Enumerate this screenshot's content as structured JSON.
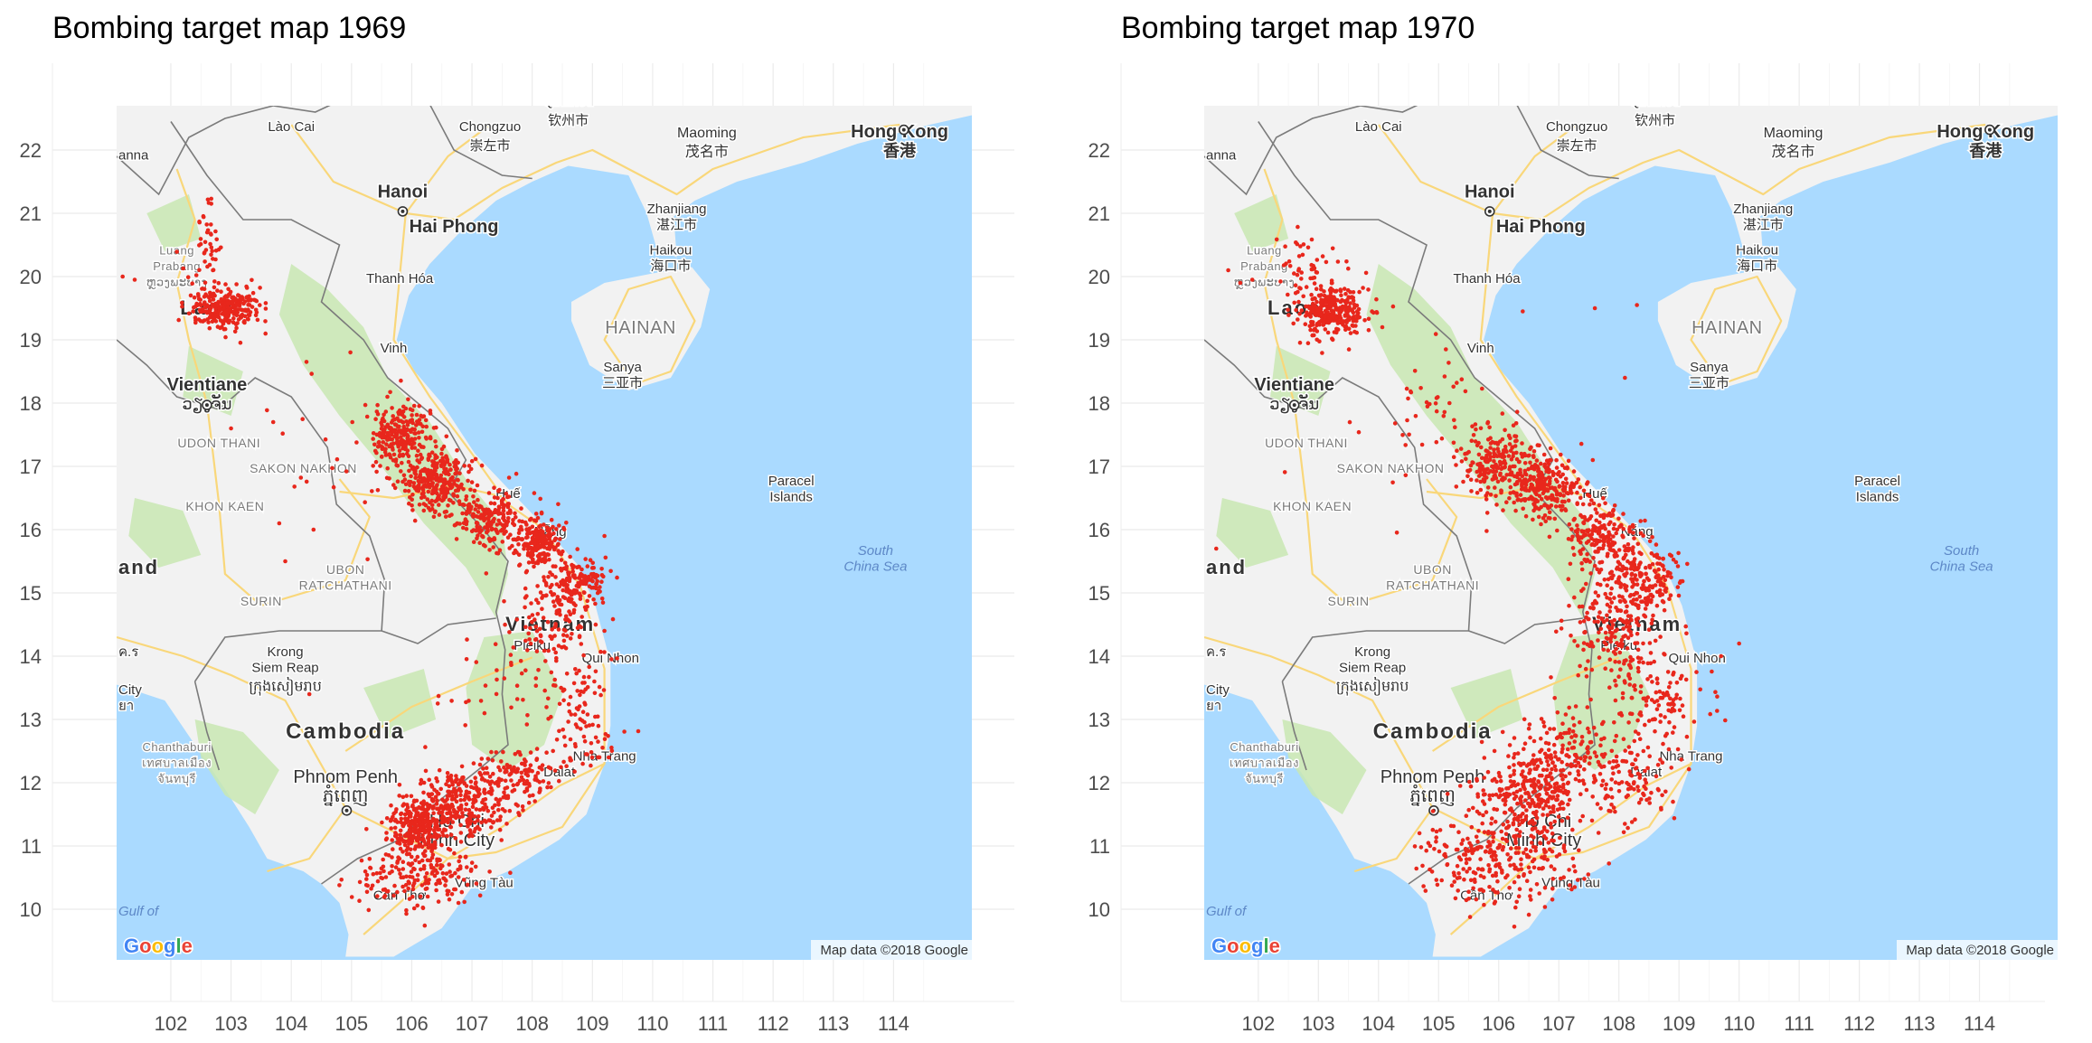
{
  "xlim": [
    101.1,
    115.3
  ],
  "ylim": [
    9.2,
    22.7
  ],
  "map_extent": {
    "lon": [
      101.1,
      115.3
    ],
    "lat": [
      9.2,
      22.7
    ]
  },
  "x_ticks": [
    "102",
    "103",
    "104",
    "105",
    "106",
    "107",
    "108",
    "109",
    "110",
    "111",
    "112",
    "113",
    "114"
  ],
  "y_ticks": [
    "10",
    "11",
    "12",
    "13",
    "14",
    "15",
    "16",
    "17",
    "18",
    "19",
    "20",
    "21",
    "22"
  ],
  "colors": {
    "sea": "#aadaff",
    "land": "#f2f2f2",
    "forest": "#c9e7b3",
    "road": "#f9d77a",
    "border": "#7b7b7b",
    "point": "#e8271c"
  },
  "basemap": {
    "attribution": "Map data ©2018 Google",
    "logo": "Google",
    "places": [
      {
        "text": "Lào Cai",
        "lon": 104.0,
        "lat": 22.3,
        "size": 15,
        "kind": "city"
      },
      {
        "text": "Chongzuo",
        "lon": 107.3,
        "lat": 22.3,
        "size": 15,
        "kind": "city"
      },
      {
        "text": "崇左市",
        "lon": 107.3,
        "lat": 22.0,
        "size": 15,
        "kind": "city"
      },
      {
        "text": "Qinzhou",
        "lon": 108.6,
        "lat": 22.7,
        "size": 15,
        "kind": "city"
      },
      {
        "text": "钦州市",
        "lon": 108.6,
        "lat": 22.4,
        "size": 15,
        "kind": "city"
      },
      {
        "text": "Maoming",
        "lon": 110.9,
        "lat": 22.2,
        "size": 16,
        "kind": "city"
      },
      {
        "text": "茂名市",
        "lon": 110.9,
        "lat": 21.9,
        "size": 16,
        "kind": "city"
      },
      {
        "text": "Hong Kong",
        "lon": 114.1,
        "lat": 22.2,
        "size": 20,
        "kind": "bold"
      },
      {
        "text": "香港",
        "lon": 114.1,
        "lat": 21.9,
        "size": 18,
        "kind": "bold"
      },
      {
        "text": "Hanoi",
        "lon": 105.85,
        "lat": 21.25,
        "size": 20,
        "kind": "bold"
      },
      {
        "text": "Hai Phong",
        "lon": 106.7,
        "lat": 20.7,
        "size": 20,
        "kind": "bold"
      },
      {
        "text": "Zhanjiang",
        "lon": 110.4,
        "lat": 21.0,
        "size": 15,
        "kind": "city"
      },
      {
        "text": "湛江市",
        "lon": 110.4,
        "lat": 20.75,
        "size": 15,
        "kind": "city"
      },
      {
        "text": "Haikou",
        "lon": 110.3,
        "lat": 20.35,
        "size": 15,
        "kind": "city"
      },
      {
        "text": "海口市",
        "lon": 110.3,
        "lat": 20.1,
        "size": 15,
        "kind": "city"
      },
      {
        "text": "Thanh Hóa",
        "lon": 105.8,
        "lat": 19.9,
        "size": 15,
        "kind": "city"
      },
      {
        "text": "HAINAN",
        "lon": 109.8,
        "lat": 19.1,
        "size": 20,
        "kind": "region"
      },
      {
        "text": "Sanya",
        "lon": 109.5,
        "lat": 18.5,
        "size": 15,
        "kind": "city"
      },
      {
        "text": "三亚市",
        "lon": 109.5,
        "lat": 18.25,
        "size": 15,
        "kind": "city"
      },
      {
        "text": "Vinh",
        "lon": 105.7,
        "lat": 18.8,
        "size": 15,
        "kind": "city"
      },
      {
        "text": "Laos",
        "lon": 102.6,
        "lat": 19.4,
        "size": 22,
        "kind": "country"
      },
      {
        "text": "Luang",
        "lon": 102.1,
        "lat": 20.35,
        "size": 13,
        "kind": "small"
      },
      {
        "text": "Prabang",
        "lon": 102.1,
        "lat": 20.1,
        "size": 13,
        "kind": "small"
      },
      {
        "text": "ຫຼວງພະບາງ",
        "lon": 102.1,
        "lat": 19.85,
        "size": 13,
        "kind": "small"
      },
      {
        "text": "Vientiane",
        "lon": 102.6,
        "lat": 18.2,
        "size": 20,
        "kind": "bold"
      },
      {
        "text": "ວຽງຈັນ",
        "lon": 102.6,
        "lat": 17.9,
        "size": 18,
        "kind": "city"
      },
      {
        "text": "UDON THANI",
        "lon": 102.8,
        "lat": 17.3,
        "size": 14,
        "kind": "region"
      },
      {
        "text": "SAKON NAKHON",
        "lon": 104.2,
        "lat": 16.9,
        "size": 14,
        "kind": "region"
      },
      {
        "text": "KHON KAEN",
        "lon": 102.9,
        "lat": 16.3,
        "size": 14,
        "kind": "region"
      },
      {
        "text": "Huế",
        "lon": 107.6,
        "lat": 16.5,
        "size": 15,
        "kind": "city"
      },
      {
        "text": "Nẵng",
        "lon": 108.3,
        "lat": 15.9,
        "size": 15,
        "kind": "city"
      },
      {
        "text": "Paracel",
        "lon": 112.3,
        "lat": 16.7,
        "size": 15,
        "kind": "city"
      },
      {
        "text": "Islands",
        "lon": 112.3,
        "lat": 16.45,
        "size": 15,
        "kind": "city"
      },
      {
        "text": "South",
        "lon": 113.7,
        "lat": 15.6,
        "size": 15,
        "kind": "water"
      },
      {
        "text": "China Sea",
        "lon": 113.7,
        "lat": 15.35,
        "size": 15,
        "kind": "water"
      },
      {
        "text": "and",
        "lon": 101.75,
        "lat": 15.3,
        "size": 22,
        "kind": "country"
      },
      {
        "text": "UBON",
        "lon": 104.9,
        "lat": 15.3,
        "size": 14,
        "kind": "region"
      },
      {
        "text": "RATCHATHANI",
        "lon": 104.9,
        "lat": 15.05,
        "size": 14,
        "kind": "region"
      },
      {
        "text": "SURIN",
        "lon": 103.5,
        "lat": 14.8,
        "size": 14,
        "kind": "region"
      },
      {
        "text": "Vietnam",
        "lon": 108.3,
        "lat": 14.4,
        "size": 22,
        "kind": "country"
      },
      {
        "text": "Pleiku",
        "lon": 108.0,
        "lat": 14.1,
        "size": 15,
        "kind": "city"
      },
      {
        "text": "Qui Nhon",
        "lon": 109.3,
        "lat": 13.9,
        "size": 15,
        "kind": "city"
      },
      {
        "text": "Krong",
        "lon": 103.9,
        "lat": 14.0,
        "size": 15,
        "kind": "city"
      },
      {
        "text": "Siem Reap",
        "lon": 103.9,
        "lat": 13.75,
        "size": 15,
        "kind": "city"
      },
      {
        "text": "ក្រុងសៀមរាប",
        "lon": 103.9,
        "lat": 13.45,
        "size": 16,
        "kind": "city"
      },
      {
        "text": "ค.ร",
        "lon": 101.3,
        "lat": 14.0,
        "size": 15,
        "kind": "city"
      },
      {
        "text": "City",
        "lon": 101.3,
        "lat": 13.4,
        "size": 15,
        "kind": "city"
      },
      {
        "text": "ยา",
        "lon": 101.3,
        "lat": 13.15,
        "size": 15,
        "kind": "city"
      },
      {
        "text": "Cambodia",
        "lon": 104.9,
        "lat": 12.7,
        "size": 24,
        "kind": "country"
      },
      {
        "text": "Nha Trang",
        "lon": 109.2,
        "lat": 12.35,
        "size": 15,
        "kind": "city"
      },
      {
        "text": "Dalat",
        "lon": 108.45,
        "lat": 12.1,
        "size": 15,
        "kind": "city"
      },
      {
        "text": "Phnom Penh",
        "lon": 104.9,
        "lat": 12.0,
        "size": 20,
        "kind": "city"
      },
      {
        "text": "ភ្នំពេញ",
        "lon": 104.9,
        "lat": 11.7,
        "size": 20,
        "kind": "city"
      },
      {
        "text": "Chanthaburi",
        "lon": 102.1,
        "lat": 12.5,
        "size": 13,
        "kind": "small"
      },
      {
        "text": "เทศบาลเมือง",
        "lon": 102.1,
        "lat": 12.25,
        "size": 13,
        "kind": "small"
      },
      {
        "text": "จันทบุรี",
        "lon": 102.1,
        "lat": 12.0,
        "size": 13,
        "kind": "small"
      },
      {
        "text": "Ho Chi",
        "lon": 106.75,
        "lat": 11.3,
        "size": 20,
        "kind": "city"
      },
      {
        "text": "Minh City",
        "lon": 106.75,
        "lat": 11.0,
        "size": 20,
        "kind": "city"
      },
      {
        "text": "Vũng Tàu",
        "lon": 107.2,
        "lat": 10.35,
        "size": 15,
        "kind": "city"
      },
      {
        "text": "Cần Thơ",
        "lon": 105.8,
        "lat": 10.15,
        "size": 15,
        "kind": "city"
      },
      {
        "text": "Gulf of",
        "lon": 101.45,
        "lat": 9.9,
        "size": 15,
        "kind": "water"
      },
      {
        "text": "anna",
        "lon": 101.3,
        "lat": 21.85,
        "size": 15,
        "kind": "city"
      }
    ],
    "capitals": [
      {
        "lon": 105.85,
        "lat": 21.03
      },
      {
        "lon": 102.6,
        "lat": 17.97
      },
      {
        "lon": 104.92,
        "lat": 11.56
      },
      {
        "lon": 114.17,
        "lat": 22.32
      }
    ]
  },
  "panels": [
    {
      "title": "Bombing target map 1969",
      "chart_data": {
        "type": "scatter",
        "title": "Bombing target map 1969",
        "xlim": [
          101.1,
          115.3
        ],
        "ylim": [
          9.2,
          22.7
        ],
        "clusters": [
          {
            "lon": 102.9,
            "lat": 19.5,
            "sd_lon": 0.28,
            "sd_lat": 0.16,
            "n": 260
          },
          {
            "lon": 102.6,
            "lat": 20.5,
            "sd_lon": 0.15,
            "sd_lat": 0.4,
            "n": 45
          },
          {
            "lon": 105.8,
            "lat": 17.5,
            "sd_lon": 0.25,
            "sd_lat": 0.28,
            "n": 230
          },
          {
            "lon": 106.4,
            "lat": 16.8,
            "sd_lon": 0.3,
            "sd_lat": 0.25,
            "n": 290
          },
          {
            "lon": 107.3,
            "lat": 16.2,
            "sd_lon": 0.3,
            "sd_lat": 0.25,
            "n": 200
          },
          {
            "lon": 108.1,
            "lat": 15.8,
            "sd_lon": 0.2,
            "sd_lat": 0.2,
            "n": 200
          },
          {
            "lon": 108.7,
            "lat": 15.2,
            "sd_lon": 0.25,
            "sd_lat": 0.2,
            "n": 170
          },
          {
            "lon": 108.3,
            "lat": 14.5,
            "sd_lon": 0.35,
            "sd_lat": 0.3,
            "n": 110
          },
          {
            "lon": 108.7,
            "lat": 13.4,
            "sd_lon": 0.35,
            "sd_lat": 0.35,
            "n": 60
          },
          {
            "lon": 106.1,
            "lat": 11.3,
            "sd_lon": 0.25,
            "sd_lat": 0.22,
            "n": 300
          },
          {
            "lon": 106.9,
            "lat": 11.7,
            "sd_lon": 0.35,
            "sd_lat": 0.25,
            "n": 240
          },
          {
            "lon": 107.8,
            "lat": 12.1,
            "sd_lon": 0.3,
            "sd_lat": 0.25,
            "n": 110
          },
          {
            "lon": 106.3,
            "lat": 10.5,
            "sd_lon": 0.4,
            "sd_lat": 0.25,
            "n": 140
          },
          {
            "lon": 105.4,
            "lat": 10.5,
            "sd_lon": 0.3,
            "sd_lat": 0.25,
            "n": 40
          },
          {
            "lon": 108.8,
            "lat": 12.6,
            "sd_lon": 0.3,
            "sd_lat": 0.3,
            "n": 50
          },
          {
            "lon": 104.5,
            "lat": 17.0,
            "sd_lon": 0.6,
            "sd_lat": 0.8,
            "n": 20
          },
          {
            "lon": 107.3,
            "lat": 13.5,
            "sd_lon": 0.5,
            "sd_lat": 0.6,
            "n": 25
          }
        ],
        "points": [
          {
            "x": 101.2,
            "y": 20.0
          },
          {
            "x": 101.4,
            "y": 19.95
          },
          {
            "x": 101.05,
            "y": 14.0
          },
          {
            "x": 103.8,
            "y": 16.1
          },
          {
            "x": 103.9,
            "y": 15.5
          },
          {
            "x": 109.2,
            "y": 15.9
          },
          {
            "x": 103.0,
            "y": 17.6
          },
          {
            "x": 103.7,
            "y": 17.7
          },
          {
            "x": 104.3,
            "y": 13.4
          }
        ]
      }
    },
    {
      "title": "Bombing target map 1970",
      "chart_data": {
        "type": "scatter",
        "title": "Bombing target map 1970",
        "xlim": [
          101.1,
          115.3
        ],
        "ylim": [
          9.2,
          22.7
        ],
        "clusters": [
          {
            "lon": 103.2,
            "lat": 19.45,
            "sd_lon": 0.3,
            "sd_lat": 0.2,
            "n": 300
          },
          {
            "lon": 102.8,
            "lat": 20.2,
            "sd_lon": 0.25,
            "sd_lat": 0.25,
            "n": 45
          },
          {
            "lon": 106.0,
            "lat": 17.0,
            "sd_lon": 0.3,
            "sd_lat": 0.3,
            "n": 240
          },
          {
            "lon": 106.8,
            "lat": 16.7,
            "sd_lon": 0.3,
            "sd_lat": 0.28,
            "n": 230
          },
          {
            "lon": 107.7,
            "lat": 15.9,
            "sd_lon": 0.3,
            "sd_lat": 0.25,
            "n": 200
          },
          {
            "lon": 108.4,
            "lat": 15.2,
            "sd_lon": 0.3,
            "sd_lat": 0.25,
            "n": 190
          },
          {
            "lon": 107.9,
            "lat": 14.4,
            "sd_lon": 0.4,
            "sd_lat": 0.35,
            "n": 160
          },
          {
            "lon": 108.6,
            "lat": 13.3,
            "sd_lon": 0.4,
            "sd_lat": 0.45,
            "n": 130
          },
          {
            "lon": 106.5,
            "lat": 11.8,
            "sd_lon": 0.45,
            "sd_lat": 0.35,
            "n": 280
          },
          {
            "lon": 107.1,
            "lat": 12.5,
            "sd_lon": 0.4,
            "sd_lat": 0.4,
            "n": 150
          },
          {
            "lon": 106.2,
            "lat": 10.7,
            "sd_lon": 0.55,
            "sd_lat": 0.35,
            "n": 200
          },
          {
            "lon": 108.2,
            "lat": 12.0,
            "sd_lon": 0.4,
            "sd_lat": 0.35,
            "n": 110
          },
          {
            "lon": 105.3,
            "lat": 11.0,
            "sd_lon": 0.35,
            "sd_lat": 0.35,
            "n": 60
          },
          {
            "lon": 104.5,
            "lat": 17.3,
            "sd_lon": 0.5,
            "sd_lat": 0.5,
            "n": 25
          },
          {
            "lon": 105.0,
            "lat": 18.3,
            "sd_lon": 0.3,
            "sd_lat": 0.3,
            "n": 20
          }
        ],
        "points": [
          {
            "x": 101.05,
            "y": 13.9
          },
          {
            "x": 101.5,
            "y": 20.1
          },
          {
            "x": 101.7,
            "y": 19.9
          },
          {
            "x": 101.9,
            "y": 19.95
          },
          {
            "x": 107.6,
            "y": 19.5
          },
          {
            "x": 108.3,
            "y": 19.55
          },
          {
            "x": 108.1,
            "y": 18.4
          },
          {
            "x": 110.0,
            "y": 14.2
          },
          {
            "x": 109.7,
            "y": 14.0
          },
          {
            "x": 101.3,
            "y": 15.7
          },
          {
            "x": 106.4,
            "y": 19.45
          }
        ]
      }
    }
  ]
}
